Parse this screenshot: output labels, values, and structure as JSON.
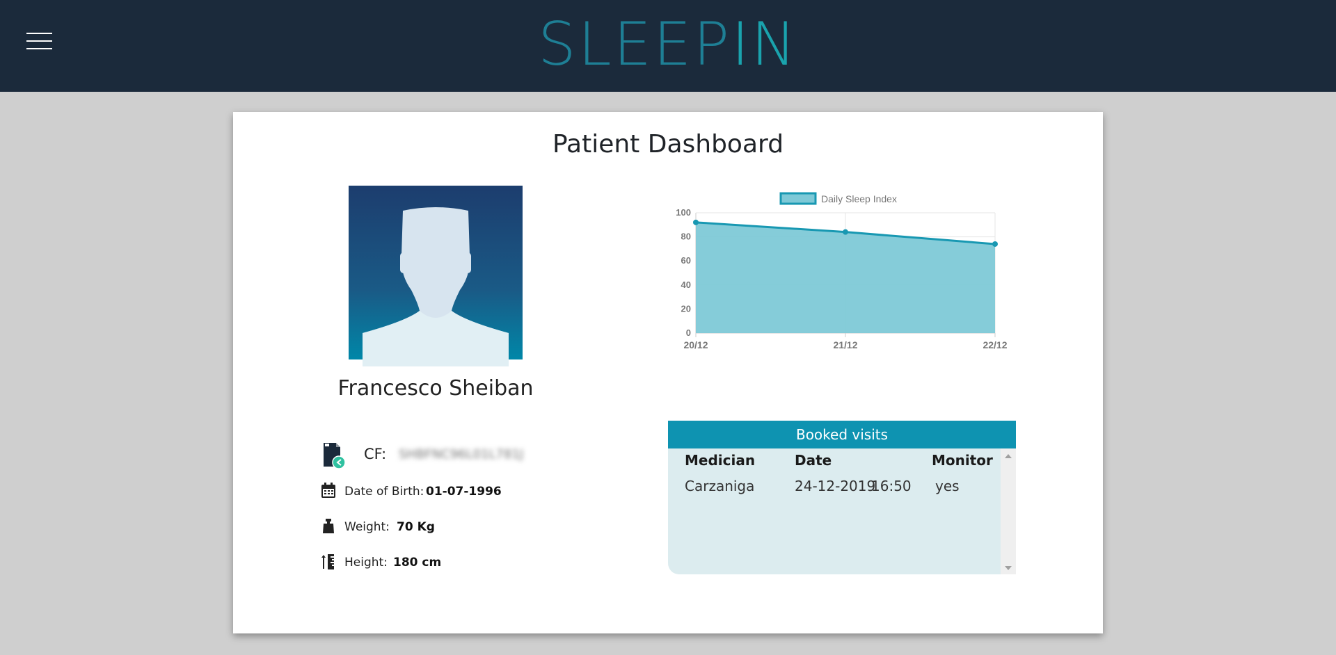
{
  "app": {
    "logo_part1": "SLEEP",
    "logo_part2": "IN"
  },
  "header": {
    "menu_icon": "hamburger-menu-icon"
  },
  "page": {
    "title": "Patient Dashboard"
  },
  "patient": {
    "name": "Francesco Sheiban",
    "cf_label": "CF:",
    "cf_value": "SHBFNC96L01L781J",
    "dob_label": "Date of Birth:",
    "dob_value": "01-07-1996",
    "weight_label": "Weight:",
    "weight_value": "70 Kg",
    "height_label": "Height:",
    "height_value": "180 cm"
  },
  "colors": {
    "header_bg": "#1b2a3b",
    "accent": "#0e93b1",
    "chart_fill": "#7ec9d7",
    "chart_line": "#1898b2",
    "visits_bg": "#dcecef"
  },
  "chart_data": {
    "type": "area",
    "legend": "Daily Sleep Index",
    "legend_position": "top",
    "categories": [
      "20/12",
      "21/12",
      "22/12"
    ],
    "series": [
      {
        "name": "Daily Sleep Index",
        "values": [
          92,
          84,
          74
        ]
      }
    ],
    "yticks": [
      "0",
      "20",
      "40",
      "60",
      "80",
      "100"
    ],
    "ylim": [
      0,
      100
    ],
    "grid": true
  },
  "visits": {
    "title": "Booked visits",
    "columns": [
      "Medician",
      "Date",
      "Monitor"
    ],
    "rows": [
      {
        "medician": "Carzaniga",
        "date": "24-12-2019",
        "time": "16:50",
        "monitor": "yes"
      }
    ]
  }
}
